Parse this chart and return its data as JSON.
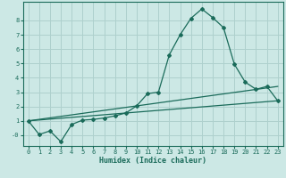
{
  "xlabel": "Humidex (Indice chaleur)",
  "background_color": "#cce8e5",
  "grid_color": "#aed0cd",
  "line_color": "#1a6b5a",
  "xlim": [
    -0.5,
    23.5
  ],
  "ylim": [
    -0.75,
    9.3
  ],
  "xticks": [
    0,
    1,
    2,
    3,
    4,
    5,
    6,
    7,
    8,
    9,
    10,
    11,
    12,
    13,
    14,
    15,
    16,
    17,
    18,
    19,
    20,
    21,
    22,
    23
  ],
  "yticks": [
    0,
    1,
    2,
    3,
    4,
    5,
    6,
    7,
    8
  ],
  "ytick_labels": [
    "-0",
    "1",
    "2",
    "3",
    "4",
    "5",
    "6",
    "7",
    "8"
  ],
  "curve_x": [
    0,
    1,
    2,
    3,
    4,
    5,
    6,
    7,
    8,
    9,
    10,
    11,
    12,
    13,
    14,
    15,
    16,
    17,
    18,
    19,
    20,
    21,
    22,
    23
  ],
  "curve_y": [
    1.0,
    0.05,
    0.3,
    -0.45,
    0.75,
    1.05,
    1.1,
    1.2,
    1.35,
    1.55,
    2.05,
    2.9,
    3.0,
    5.6,
    7.0,
    8.15,
    8.8,
    8.2,
    7.5,
    4.95,
    3.7,
    3.2,
    3.4,
    2.4
  ],
  "line1_x": [
    0,
    23
  ],
  "line1_y": [
    1.0,
    2.4
  ],
  "line2_x": [
    0,
    23
  ],
  "line2_y": [
    1.0,
    3.4
  ]
}
